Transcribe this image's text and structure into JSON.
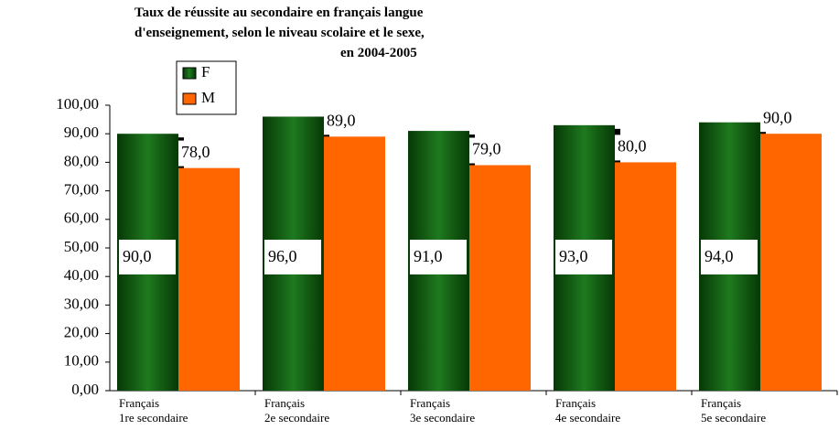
{
  "chart_data": {
    "type": "bar",
    "title": [
      "Taux de réussite au secondaire en français langue",
      "d'enseignement, selon le niveau scolaire et le sexe,",
      "en  2004-2005"
    ],
    "categories": [
      "Français\n1re secondaire",
      "Français\n2e secondaire",
      "Français\n3e secondaire",
      "Français\n4e secondaire",
      "Français\n5e secondaire"
    ],
    "series": [
      {
        "name": "F",
        "color": "#0f5e0f",
        "values": [
          90,
          96,
          91,
          93,
          94
        ],
        "value_labels": [
          "90,0",
          "96,0",
          "91,0",
          "93,0",
          "94,0"
        ]
      },
      {
        "name": "M",
        "color": "#ff6600",
        "values": [
          78,
          89,
          79,
          80,
          90
        ],
        "value_labels": [
          "78,0",
          "89,0",
          "79,0",
          "80,0",
          "90,0"
        ]
      }
    ],
    "ylim": [
      0,
      100
    ],
    "yticks": [
      {
        "value": 0,
        "label": "0,00"
      },
      {
        "value": 10,
        "label": "10,00"
      },
      {
        "value": 20,
        "label": "20,00"
      },
      {
        "value": 30,
        "label": "30,00"
      },
      {
        "value": 40,
        "label": "40,00"
      },
      {
        "value": 50,
        "label": "50,00"
      },
      {
        "value": 60,
        "label": "60,00"
      },
      {
        "value": 70,
        "label": "70,00"
      },
      {
        "value": 80,
        "label": "80,00"
      },
      {
        "value": 90,
        "label": "90,00"
      },
      {
        "value": 100,
        "label": "100,00"
      }
    ]
  }
}
